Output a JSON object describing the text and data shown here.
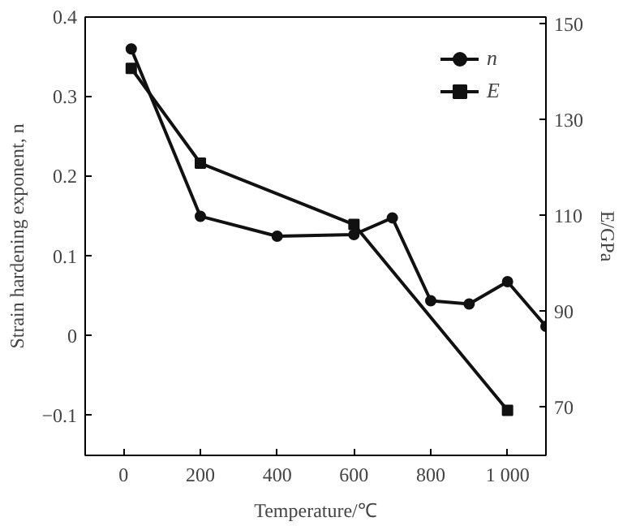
{
  "chart_data": {
    "type": "line",
    "xlabel": "Temperature/℃",
    "ylabel": "Strain hardening exponent, n",
    "y2label": "E/GPa",
    "xlim": [
      -100,
      1100
    ],
    "xticks": [
      0,
      200,
      400,
      600,
      800,
      {
        "value": 1000,
        "label": "1 000"
      }
    ],
    "ylim": [
      -0.15,
      0.4
    ],
    "yticks": [
      -0.1,
      0,
      0.1,
      0.2,
      0.3,
      0.4
    ],
    "y2lim": [
      60,
      151.5
    ],
    "y2ticks": [
      70,
      90,
      110,
      130,
      150
    ],
    "legend": "top right",
    "grid": false,
    "line_style": "solid",
    "series": [
      {
        "name": "n",
        "color": "#111111",
        "marker": "circle",
        "x": [
          20,
          200,
          400,
          600,
          700,
          800,
          900,
          1000,
          1100
        ],
        "values": [
          0.36,
          0.15,
          0.125,
          0.127,
          0.148,
          0.044,
          0.04,
          0.068,
          0.012
        ]
      },
      {
        "name": "E",
        "color": "#111111",
        "marker": "square",
        "axis": "y2",
        "x": [
          20,
          200,
          600,
          1000
        ],
        "values": [
          140.8,
          121,
          108.2,
          69.4
        ]
      }
    ]
  }
}
